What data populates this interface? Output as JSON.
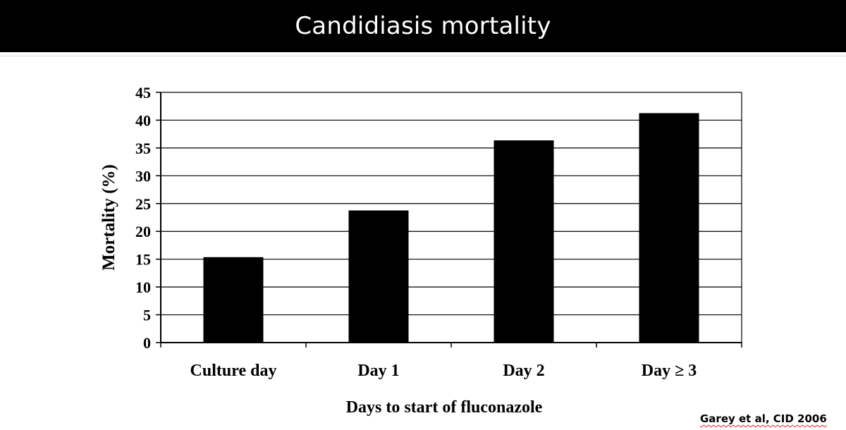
{
  "slide": {
    "title": "Candidiasis mortality",
    "citation": "Garey et al, CID 2006"
  },
  "chart_data": {
    "type": "bar",
    "categories": [
      "Culture day",
      "Day 1",
      "Day 2",
      "Day ≥ 3"
    ],
    "values": [
      15.3,
      23.7,
      36.3,
      41.2
    ],
    "xlabel": "Days to start of fluconazole",
    "ylabel": "Mortality (%)",
    "ylim": [
      0,
      45
    ],
    "yticks": [
      0,
      5,
      10,
      15,
      20,
      25,
      30,
      35,
      40,
      45
    ],
    "grid": true,
    "legend": "none",
    "bar_color": "#000000"
  }
}
